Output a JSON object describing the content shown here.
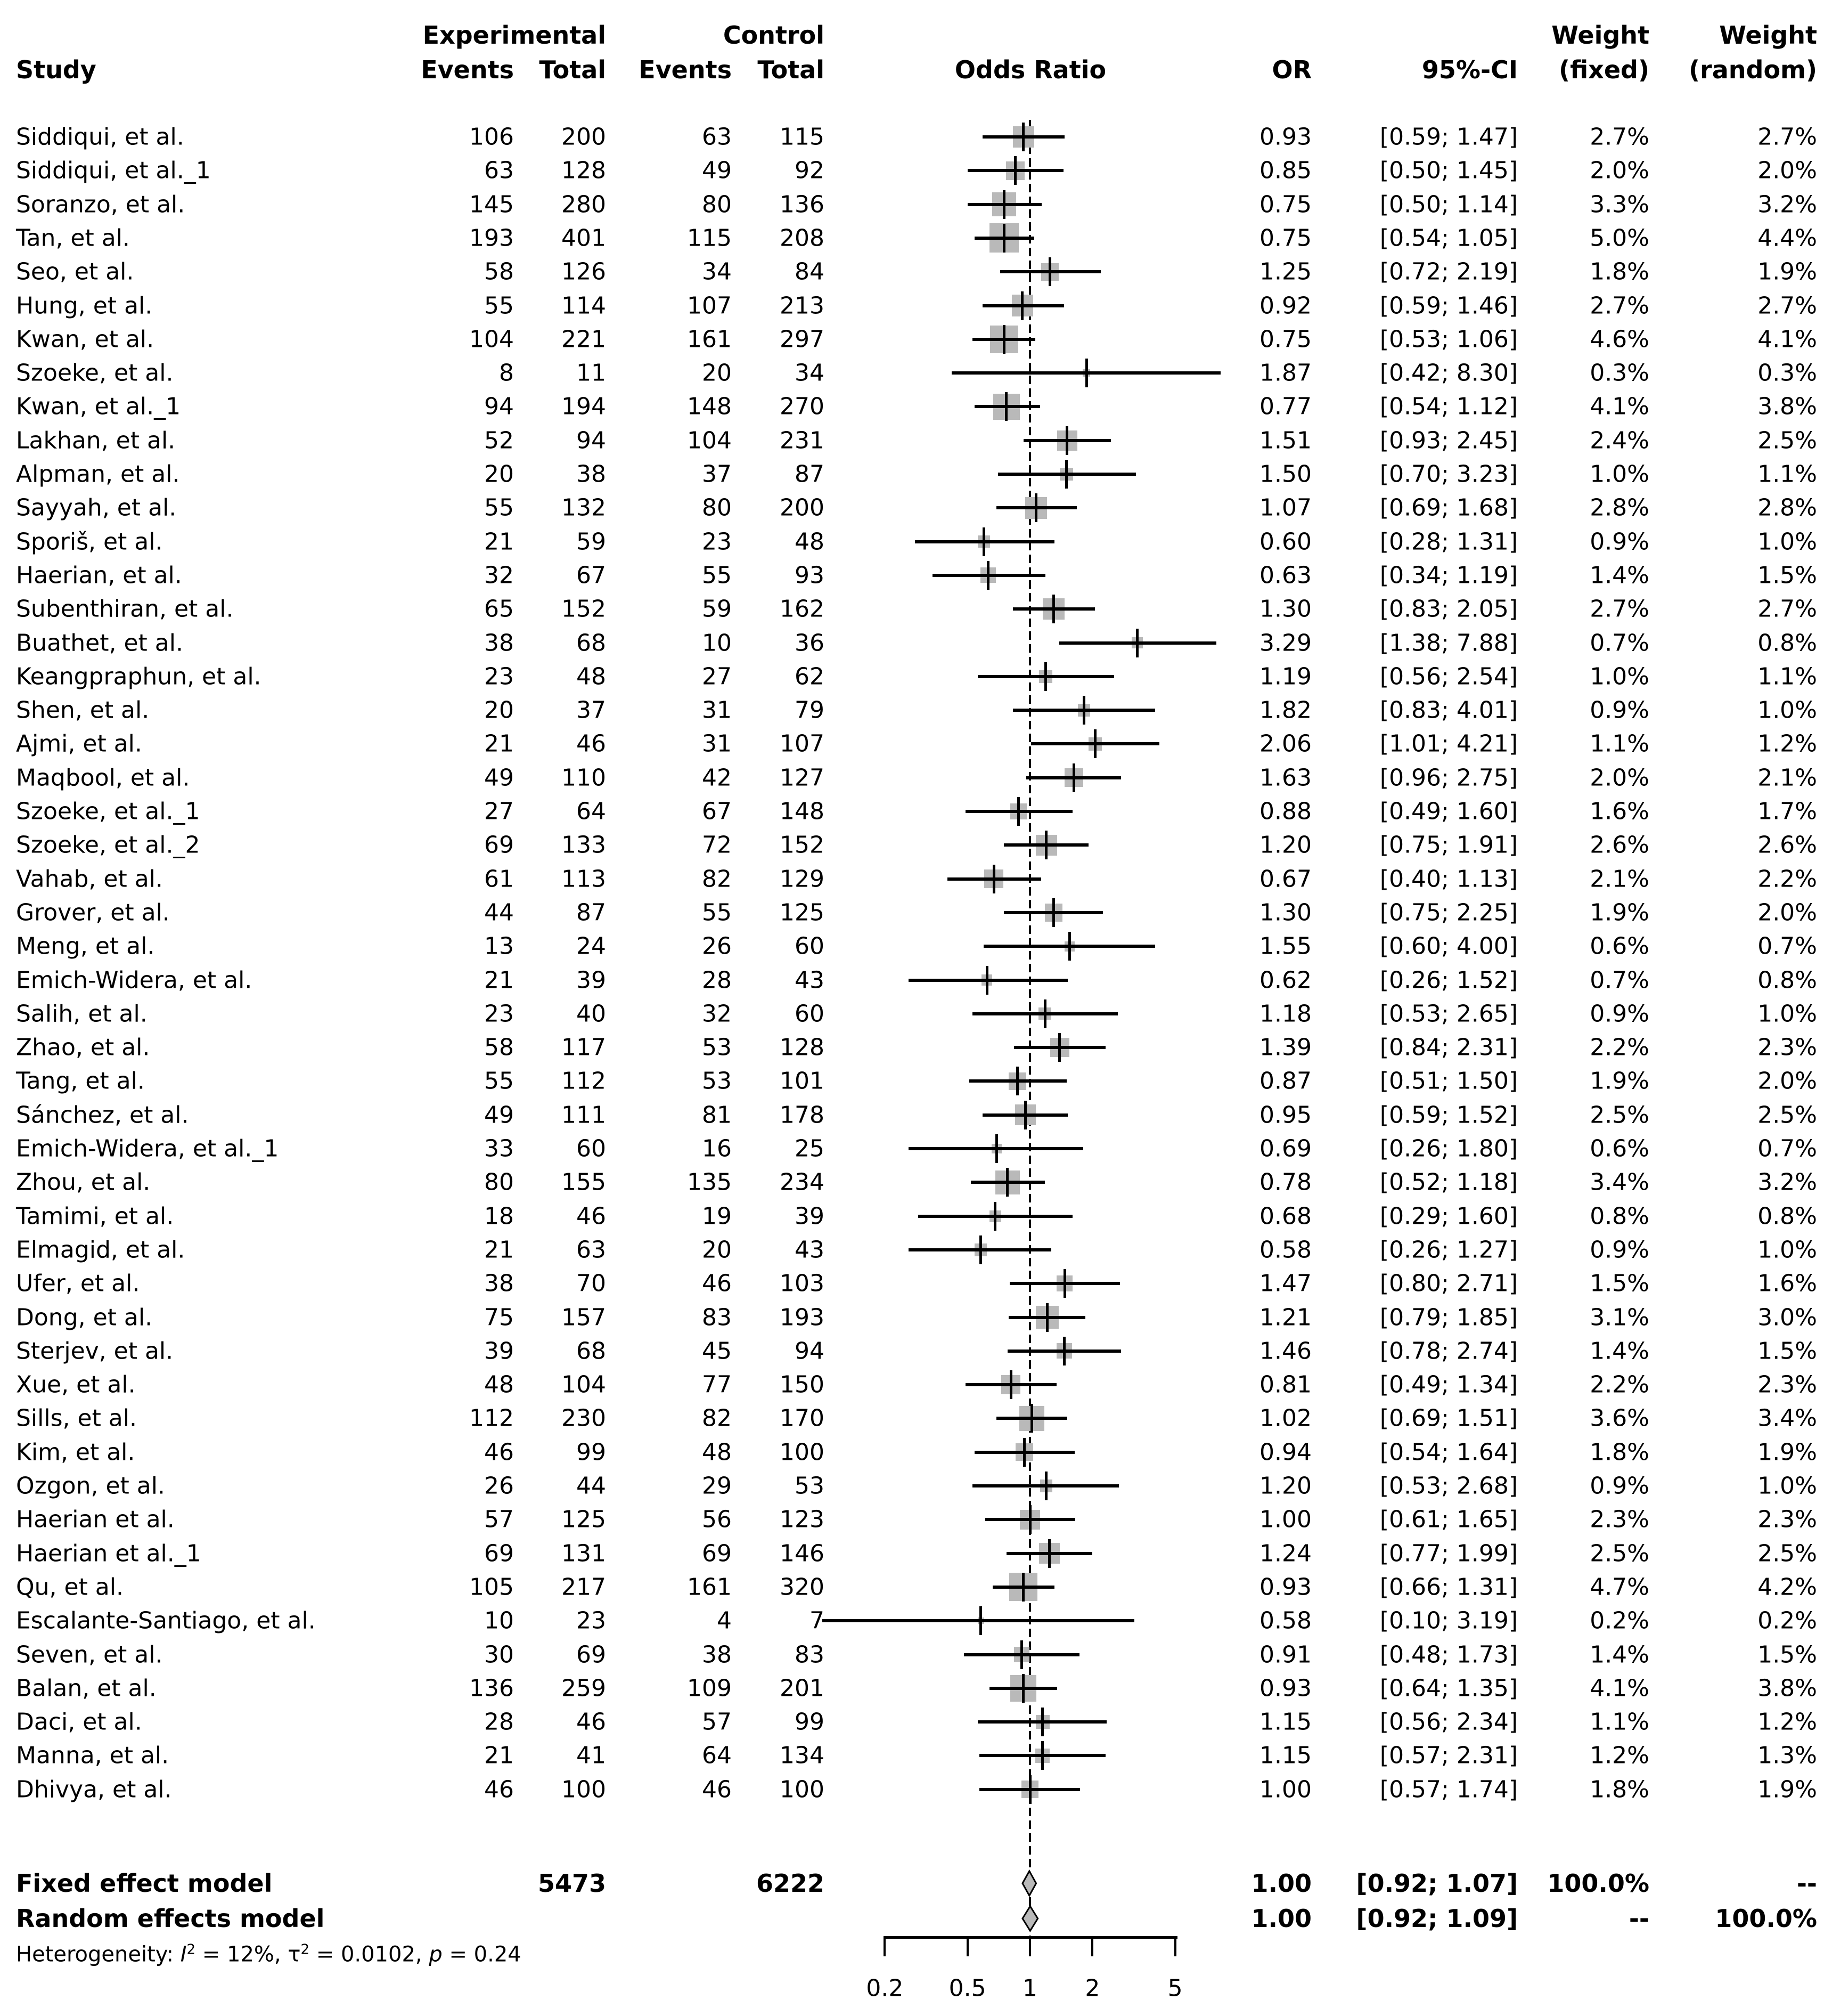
{
  "header": {
    "study": "Study",
    "experimental": "Experimental",
    "control": "Control",
    "events": "Events",
    "total": "Total",
    "odds_ratio": "Odds Ratio",
    "or": "OR",
    "ci": "95%-CI",
    "weight": "Weight",
    "fixed": "(fixed)",
    "random": "(random)"
  },
  "colors": {
    "marker_fill": "#b9b9b9",
    "diamond_fill": "#b9b9b9",
    "line": "#000000",
    "background": "#ffffff"
  },
  "chart_data": {
    "type": "forest",
    "x_axis": {
      "scale": "log",
      "ticks": [
        {
          "v": 0.2,
          "label": "0.2"
        },
        {
          "v": 0.5,
          "label": "0.5"
        },
        {
          "v": 1,
          "label": "1"
        },
        {
          "v": 2,
          "label": "2"
        },
        {
          "v": 5,
          "label": "5"
        }
      ]
    },
    "studies": [
      {
        "name": "Siddiqui, et al.",
        "ee": 106,
        "et": 200,
        "ce": 63,
        "ct": 115,
        "or": 0.93,
        "lo": 0.59,
        "hi": 1.47,
        "wf": 2.7,
        "wr": 2.7
      },
      {
        "name": "Siddiqui, et al._1",
        "ee": 63,
        "et": 128,
        "ce": 49,
        "ct": 92,
        "or": 0.85,
        "lo": 0.5,
        "hi": 1.45,
        "wf": 2.0,
        "wr": 2.0
      },
      {
        "name": "Soranzo, et al.",
        "ee": 145,
        "et": 280,
        "ce": 80,
        "ct": 136,
        "or": 0.75,
        "lo": 0.5,
        "hi": 1.14,
        "wf": 3.3,
        "wr": 3.2
      },
      {
        "name": "Tan, et al.",
        "ee": 193,
        "et": 401,
        "ce": 115,
        "ct": 208,
        "or": 0.75,
        "lo": 0.54,
        "hi": 1.05,
        "wf": 5.0,
        "wr": 4.4
      },
      {
        "name": "Seo, et al.",
        "ee": 58,
        "et": 126,
        "ce": 34,
        "ct": 84,
        "or": 1.25,
        "lo": 0.72,
        "hi": 2.19,
        "wf": 1.8,
        "wr": 1.9
      },
      {
        "name": "Hung, et al.",
        "ee": 55,
        "et": 114,
        "ce": 107,
        "ct": 213,
        "or": 0.92,
        "lo": 0.59,
        "hi": 1.46,
        "wf": 2.7,
        "wr": 2.7
      },
      {
        "name": "Kwan, et al.",
        "ee": 104,
        "et": 221,
        "ce": 161,
        "ct": 297,
        "or": 0.75,
        "lo": 0.53,
        "hi": 1.06,
        "wf": 4.6,
        "wr": 4.1
      },
      {
        "name": "Szoeke, et al.",
        "ee": 8,
        "et": 11,
        "ce": 20,
        "ct": 34,
        "or": 1.87,
        "lo": 0.42,
        "hi": 8.3,
        "wf": 0.3,
        "wr": 0.3
      },
      {
        "name": "Kwan, et al._1",
        "ee": 94,
        "et": 194,
        "ce": 148,
        "ct": 270,
        "or": 0.77,
        "lo": 0.54,
        "hi": 1.12,
        "wf": 4.1,
        "wr": 3.8
      },
      {
        "name": "Lakhan, et al.",
        "ee": 52,
        "et": 94,
        "ce": 104,
        "ct": 231,
        "or": 1.51,
        "lo": 0.93,
        "hi": 2.45,
        "wf": 2.4,
        "wr": 2.5
      },
      {
        "name": "Alpman, et al.",
        "ee": 20,
        "et": 38,
        "ce": 37,
        "ct": 87,
        "or": 1.5,
        "lo": 0.7,
        "hi": 3.23,
        "wf": 1.0,
        "wr": 1.1
      },
      {
        "name": "Sayyah, et al.",
        "ee": 55,
        "et": 132,
        "ce": 80,
        "ct": 200,
        "or": 1.07,
        "lo": 0.69,
        "hi": 1.68,
        "wf": 2.8,
        "wr": 2.8
      },
      {
        "name": "Sporiš, et al.",
        "ee": 21,
        "et": 59,
        "ce": 23,
        "ct": 48,
        "or": 0.6,
        "lo": 0.28,
        "hi": 1.31,
        "wf": 0.9,
        "wr": 1.0
      },
      {
        "name": "Haerian, et al.",
        "ee": 32,
        "et": 67,
        "ce": 55,
        "ct": 93,
        "or": 0.63,
        "lo": 0.34,
        "hi": 1.19,
        "wf": 1.4,
        "wr": 1.5
      },
      {
        "name": "Subenthiran, et al.",
        "ee": 65,
        "et": 152,
        "ce": 59,
        "ct": 162,
        "or": 1.3,
        "lo": 0.83,
        "hi": 2.05,
        "wf": 2.7,
        "wr": 2.7
      },
      {
        "name": "Buathet, et al.",
        "ee": 38,
        "et": 68,
        "ce": 10,
        "ct": 36,
        "or": 3.29,
        "lo": 1.38,
        "hi": 7.88,
        "wf": 0.7,
        "wr": 0.8
      },
      {
        "name": "Keangpraphun, et al.",
        "ee": 23,
        "et": 48,
        "ce": 27,
        "ct": 62,
        "or": 1.19,
        "lo": 0.56,
        "hi": 2.54,
        "wf": 1.0,
        "wr": 1.1
      },
      {
        "name": "Shen, et al.",
        "ee": 20,
        "et": 37,
        "ce": 31,
        "ct": 79,
        "or": 1.82,
        "lo": 0.83,
        "hi": 4.01,
        "wf": 0.9,
        "wr": 1.0
      },
      {
        "name": "Ajmi, et al.",
        "ee": 21,
        "et": 46,
        "ce": 31,
        "ct": 107,
        "or": 2.06,
        "lo": 1.01,
        "hi": 4.21,
        "wf": 1.1,
        "wr": 1.2
      },
      {
        "name": "Maqbool, et al.",
        "ee": 49,
        "et": 110,
        "ce": 42,
        "ct": 127,
        "or": 1.63,
        "lo": 0.96,
        "hi": 2.75,
        "wf": 2.0,
        "wr": 2.1
      },
      {
        "name": "Szoeke, et al._1",
        "ee": 27,
        "et": 64,
        "ce": 67,
        "ct": 148,
        "or": 0.88,
        "lo": 0.49,
        "hi": 1.6,
        "wf": 1.6,
        "wr": 1.7
      },
      {
        "name": "Szoeke, et al._2",
        "ee": 69,
        "et": 133,
        "ce": 72,
        "ct": 152,
        "or": 1.2,
        "lo": 0.75,
        "hi": 1.91,
        "wf": 2.6,
        "wr": 2.6
      },
      {
        "name": "Vahab, et al.",
        "ee": 61,
        "et": 113,
        "ce": 82,
        "ct": 129,
        "or": 0.67,
        "lo": 0.4,
        "hi": 1.13,
        "wf": 2.1,
        "wr": 2.2
      },
      {
        "name": "Grover, et al.",
        "ee": 44,
        "et": 87,
        "ce": 55,
        "ct": 125,
        "or": 1.3,
        "lo": 0.75,
        "hi": 2.25,
        "wf": 1.9,
        "wr": 2.0
      },
      {
        "name": "Meng, et al.",
        "ee": 13,
        "et": 24,
        "ce": 26,
        "ct": 60,
        "or": 1.55,
        "lo": 0.6,
        "hi": 4.0,
        "wf": 0.6,
        "wr": 0.7
      },
      {
        "name": "Emich-Widera, et al.",
        "ee": 21,
        "et": 39,
        "ce": 28,
        "ct": 43,
        "or": 0.62,
        "lo": 0.26,
        "hi": 1.52,
        "wf": 0.7,
        "wr": 0.8
      },
      {
        "name": "Salih, et al.",
        "ee": 23,
        "et": 40,
        "ce": 32,
        "ct": 60,
        "or": 1.18,
        "lo": 0.53,
        "hi": 2.65,
        "wf": 0.9,
        "wr": 1.0
      },
      {
        "name": "Zhao, et al.",
        "ee": 58,
        "et": 117,
        "ce": 53,
        "ct": 128,
        "or": 1.39,
        "lo": 0.84,
        "hi": 2.31,
        "wf": 2.2,
        "wr": 2.3
      },
      {
        "name": "Tang, et al.",
        "ee": 55,
        "et": 112,
        "ce": 53,
        "ct": 101,
        "or": 0.87,
        "lo": 0.51,
        "hi": 1.5,
        "wf": 1.9,
        "wr": 2.0
      },
      {
        "name": "Sánchez, et al.",
        "ee": 49,
        "et": 111,
        "ce": 81,
        "ct": 178,
        "or": 0.95,
        "lo": 0.59,
        "hi": 1.52,
        "wf": 2.5,
        "wr": 2.5
      },
      {
        "name": "Emich-Widera, et al._1",
        "ee": 33,
        "et": 60,
        "ce": 16,
        "ct": 25,
        "or": 0.69,
        "lo": 0.26,
        "hi": 1.8,
        "wf": 0.6,
        "wr": 0.7
      },
      {
        "name": "Zhou, et al.",
        "ee": 80,
        "et": 155,
        "ce": 135,
        "ct": 234,
        "or": 0.78,
        "lo": 0.52,
        "hi": 1.18,
        "wf": 3.4,
        "wr": 3.2
      },
      {
        "name": "Tamimi, et al.",
        "ee": 18,
        "et": 46,
        "ce": 19,
        "ct": 39,
        "or": 0.68,
        "lo": 0.29,
        "hi": 1.6,
        "wf": 0.8,
        "wr": 0.8
      },
      {
        "name": "Elmagid, et al.",
        "ee": 21,
        "et": 63,
        "ce": 20,
        "ct": 43,
        "or": 0.58,
        "lo": 0.26,
        "hi": 1.27,
        "wf": 0.9,
        "wr": 1.0
      },
      {
        "name": "Ufer, et al.",
        "ee": 38,
        "et": 70,
        "ce": 46,
        "ct": 103,
        "or": 1.47,
        "lo": 0.8,
        "hi": 2.71,
        "wf": 1.5,
        "wr": 1.6
      },
      {
        "name": "Dong, et al.",
        "ee": 75,
        "et": 157,
        "ce": 83,
        "ct": 193,
        "or": 1.21,
        "lo": 0.79,
        "hi": 1.85,
        "wf": 3.1,
        "wr": 3.0
      },
      {
        "name": "Sterjev, et al.",
        "ee": 39,
        "et": 68,
        "ce": 45,
        "ct": 94,
        "or": 1.46,
        "lo": 0.78,
        "hi": 2.74,
        "wf": 1.4,
        "wr": 1.5
      },
      {
        "name": "Xue, et al.",
        "ee": 48,
        "et": 104,
        "ce": 77,
        "ct": 150,
        "or": 0.81,
        "lo": 0.49,
        "hi": 1.34,
        "wf": 2.2,
        "wr": 2.3
      },
      {
        "name": "Sills, et al.",
        "ee": 112,
        "et": 230,
        "ce": 82,
        "ct": 170,
        "or": 1.02,
        "lo": 0.69,
        "hi": 1.51,
        "wf": 3.6,
        "wr": 3.4
      },
      {
        "name": "Kim, et al.",
        "ee": 46,
        "et": 99,
        "ce": 48,
        "ct": 100,
        "or": 0.94,
        "lo": 0.54,
        "hi": 1.64,
        "wf": 1.8,
        "wr": 1.9
      },
      {
        "name": "Ozgon, et al.",
        "ee": 26,
        "et": 44,
        "ce": 29,
        "ct": 53,
        "or": 1.2,
        "lo": 0.53,
        "hi": 2.68,
        "wf": 0.9,
        "wr": 1.0
      },
      {
        "name": "Haerian et al.",
        "ee": 57,
        "et": 125,
        "ce": 56,
        "ct": 123,
        "or": 1.0,
        "lo": 0.61,
        "hi": 1.65,
        "wf": 2.3,
        "wr": 2.3
      },
      {
        "name": "Haerian et al._1",
        "ee": 69,
        "et": 131,
        "ce": 69,
        "ct": 146,
        "or": 1.24,
        "lo": 0.77,
        "hi": 1.99,
        "wf": 2.5,
        "wr": 2.5
      },
      {
        "name": "Qu, et al.",
        "ee": 105,
        "et": 217,
        "ce": 161,
        "ct": 320,
        "or": 0.93,
        "lo": 0.66,
        "hi": 1.31,
        "wf": 4.7,
        "wr": 4.2
      },
      {
        "name": "Escalante-Santiago, et al.",
        "ee": 10,
        "et": 23,
        "ce": 4,
        "ct": 7,
        "or": 0.58,
        "lo": 0.1,
        "hi": 3.19,
        "wf": 0.2,
        "wr": 0.2
      },
      {
        "name": "Seven, et al.",
        "ee": 30,
        "et": 69,
        "ce": 38,
        "ct": 83,
        "or": 0.91,
        "lo": 0.48,
        "hi": 1.73,
        "wf": 1.4,
        "wr": 1.5
      },
      {
        "name": "Balan, et al.",
        "ee": 136,
        "et": 259,
        "ce": 109,
        "ct": 201,
        "or": 0.93,
        "lo": 0.64,
        "hi": 1.35,
        "wf": 4.1,
        "wr": 3.8
      },
      {
        "name": "Daci, et al.",
        "ee": 28,
        "et": 46,
        "ce": 57,
        "ct": 99,
        "or": 1.15,
        "lo": 0.56,
        "hi": 2.34,
        "wf": 1.1,
        "wr": 1.2
      },
      {
        "name": "Manna, et al.",
        "ee": 21,
        "et": 41,
        "ce": 64,
        "ct": 134,
        "or": 1.15,
        "lo": 0.57,
        "hi": 2.31,
        "wf": 1.2,
        "wr": 1.3
      },
      {
        "name": "Dhivya, et al.",
        "ee": 46,
        "et": 100,
        "ce": 46,
        "ct": 100,
        "or": 1.0,
        "lo": 0.57,
        "hi": 1.74,
        "wf": 1.8,
        "wr": 1.9
      }
    ],
    "summary": [
      {
        "label": "Fixed effect model",
        "exp_total": 5473,
        "ctrl_total": 6222,
        "or_text": "1.00",
        "ci_text": "[0.92; 1.07]",
        "lo": 0.92,
        "hi": 1.07,
        "weight_fixed": "100.0%",
        "weight_random": "--"
      },
      {
        "label": "Random effects model",
        "or_text": "1.00",
        "ci_text": "[0.92; 1.09]",
        "lo": 0.92,
        "hi": 1.09,
        "weight_fixed": "--",
        "weight_random": "100.0%"
      }
    ],
    "heterogeneity_parts": [
      {
        "t": "Heterogeneity: "
      },
      {
        "t": "I",
        "i": true
      },
      {
        "t": "2",
        "sup": true
      },
      {
        "t": " = 12%, "
      },
      {
        "t": "τ"
      },
      {
        "t": "2",
        "sup": true
      },
      {
        "t": " = 0.0102, "
      },
      {
        "t": "p",
        "i": true
      },
      {
        "t": " = 0.24"
      }
    ]
  }
}
